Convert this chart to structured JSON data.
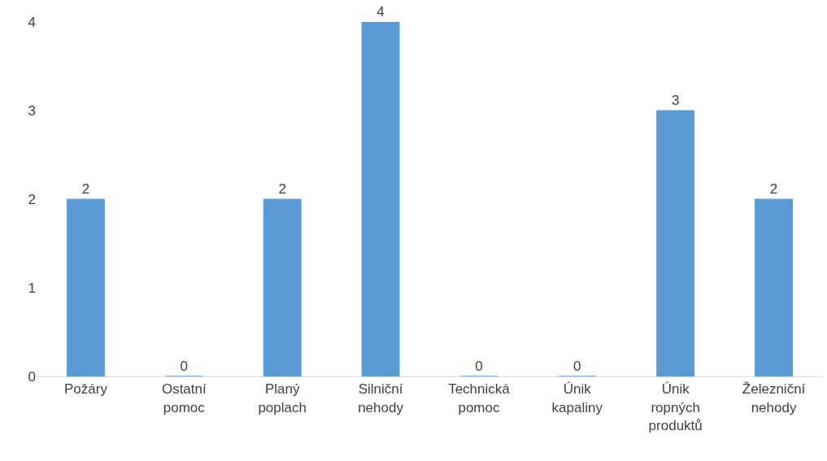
{
  "chart_data": {
    "type": "bar",
    "categories": [
      "Požáry",
      "Ostatní pomoc",
      "Planý poplach",
      "Silniční nehody",
      "Technická pomoc",
      "Únik kapaliny",
      "Únik ropných produktů",
      "Železniční nehody"
    ],
    "values": [
      2,
      0,
      2,
      4,
      0,
      0,
      3,
      2
    ],
    "color": "#5b9bd5",
    "ylim": [
      0,
      4
    ],
    "yticks": [
      0,
      1,
      2,
      3,
      4
    ],
    "data_labels": true,
    "grid": false,
    "legend": false
  }
}
